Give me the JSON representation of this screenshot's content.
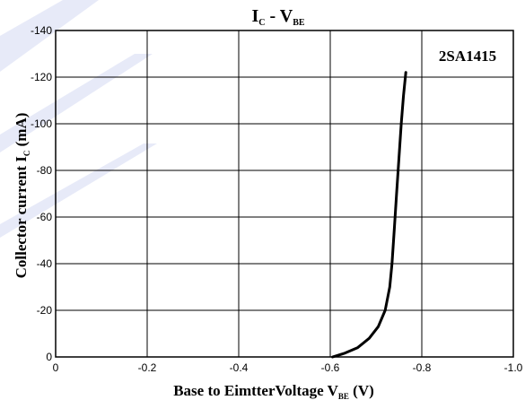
{
  "chart_data": {
    "type": "line",
    "title_main": "I",
    "title_main_sub": "C",
    "title_sep": " - V",
    "title_sep_sub": "BE",
    "xlabel_main": "Base to EimtterVoltage V",
    "xlabel_sub": "BE",
    "xlabel_unit": " (V)",
    "ylabel_main": "Collector current  I",
    "ylabel_sub": "C",
    "ylabel_unit": " (mA)",
    "annotation": "2SA1415",
    "xlim": [
      0,
      -1.0
    ],
    "ylim": [
      0,
      -140
    ],
    "x_ticks": [
      0,
      -0.2,
      -0.4,
      -0.6,
      -0.8,
      -1.0
    ],
    "x_tick_labels": [
      "0",
      "-0.2",
      "-0.4",
      "-0.6",
      "-0.8",
      "-1.0"
    ],
    "y_ticks": [
      0,
      -20,
      -40,
      -60,
      -80,
      -100,
      -120,
      -140
    ],
    "y_tick_labels": [
      "0",
      "-20",
      "-40",
      "-60",
      "-80",
      "-100",
      "-120",
      "-140"
    ],
    "grid": true,
    "series": [
      {
        "color": "#000000",
        "x": [
          -0.605,
          -0.63,
          -0.66,
          -0.685,
          -0.705,
          -0.72,
          -0.73,
          -0.735,
          -0.74,
          -0.745,
          -0.75,
          -0.755,
          -0.76,
          -0.765
        ],
        "y": [
          0,
          -1.5,
          -4,
          -8,
          -13,
          -20,
          -30,
          -40,
          -55,
          -70,
          -85,
          -100,
          -112,
          -122
        ]
      }
    ]
  }
}
